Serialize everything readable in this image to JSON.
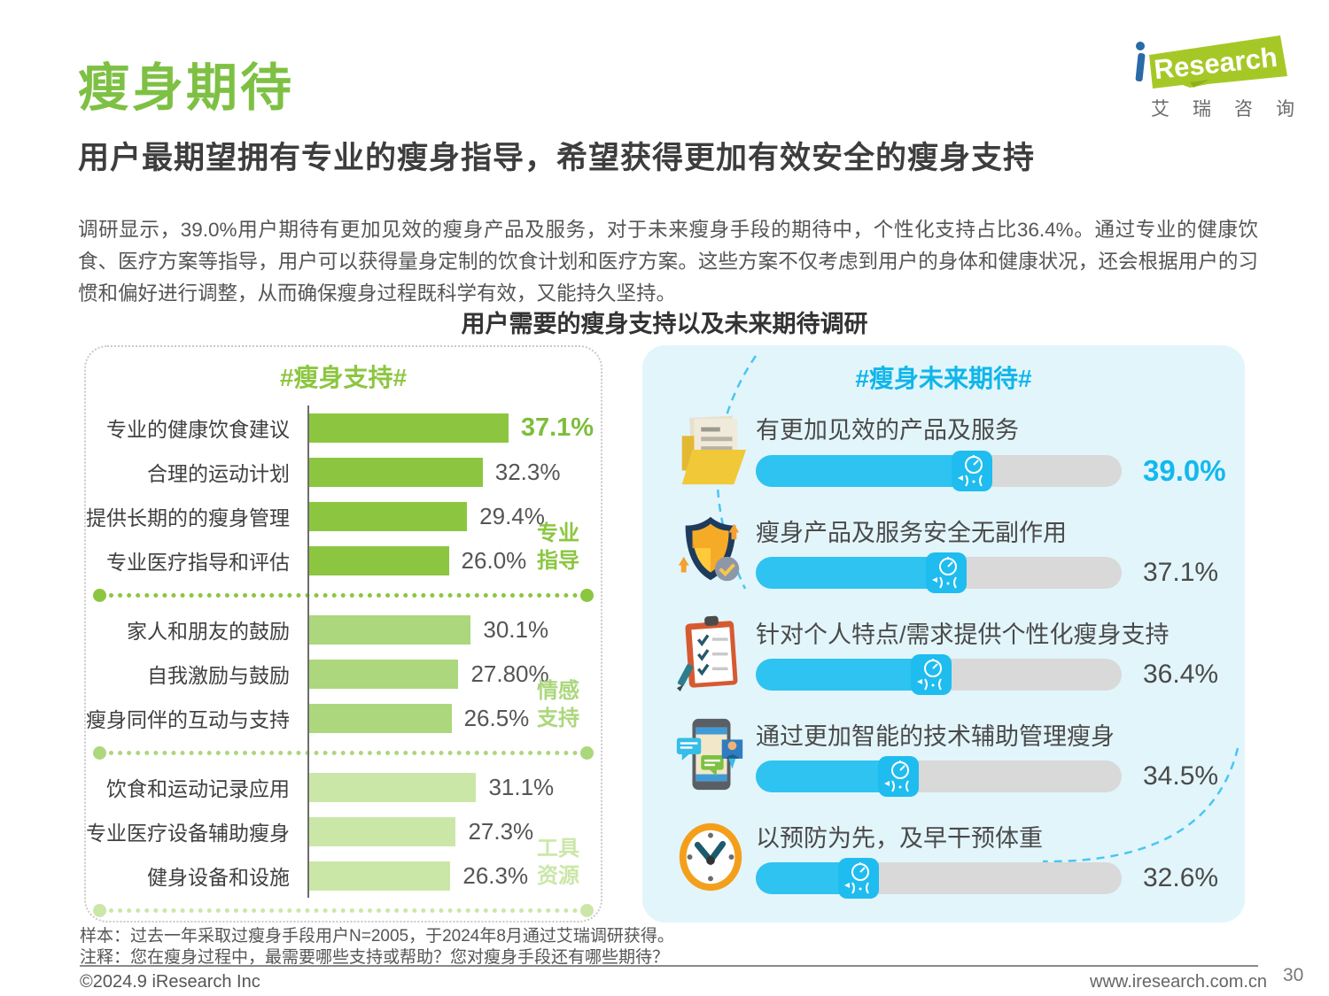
{
  "page": {
    "title": "瘦身期待",
    "subtitle": "用户最期望拥有专业的瘦身指导，希望获得更加有效安全的瘦身支持",
    "paragraph": "调研显示，39.0%用户期待有更加见效的瘦身产品及服务，对于未来瘦身手段的期待中，个性化支持占比36.4%。通过专业的健康饮食、医疗方案等指导，用户可以获得量身定制的饮食计划和医疗方案。这些方案不仅考虑到用户的身体和健康状况，还会根据用户的习惯和偏好进行调整，从而确保瘦身过程既科学有效，又能持久坚持。",
    "chart_title": "用户需要的瘦身支持以及未来期待调研",
    "page_number": "30"
  },
  "logo": {
    "i": "i",
    "name": "Research",
    "cn": "艾瑞咨询"
  },
  "left_chart": {
    "header": "#瘦身支持#",
    "groups": [
      {
        "label_line1": "专业",
        "label_line2": "指导",
        "rows": [
          {
            "label": "专业的健康饮食建议",
            "value": 37.1,
            "display": "37.1%"
          },
          {
            "label": "合理的运动计划",
            "value": 32.3,
            "display": "32.3%"
          },
          {
            "label": "提供长期的的瘦身管理",
            "value": 29.4,
            "display": "29.4%"
          },
          {
            "label": "专业医疗指导和评估",
            "value": 26.0,
            "display": "26.0%"
          }
        ]
      },
      {
        "label_line1": "情感",
        "label_line2": "支持",
        "rows": [
          {
            "label": "家人和朋友的鼓励",
            "value": 30.1,
            "display": "30.1%"
          },
          {
            "label": "自我激励与鼓励",
            "value": 27.8,
            "display": "27.80%"
          },
          {
            "label": "瘦身同伴的互动与支持",
            "value": 26.5,
            "display": "26.5%"
          }
        ]
      },
      {
        "label_line1": "工具",
        "label_line2": "资源",
        "rows": [
          {
            "label": "饮食和运动记录应用",
            "value": 31.1,
            "display": "31.1%"
          },
          {
            "label": "专业医疗设备辅助瘦身",
            "value": 27.3,
            "display": "27.3%"
          },
          {
            "label": "健身设备和设施",
            "value": 26.3,
            "display": "26.3%"
          }
        ]
      }
    ]
  },
  "right_chart": {
    "header": "#瘦身未来期待#",
    "items": [
      {
        "icon": "folder-documents-icon",
        "label": "有更加见效的产品及服务",
        "value": 39.0,
        "display": "39.0%",
        "fill_pct": 59
      },
      {
        "icon": "shield-check-icon",
        "label": "瘦身产品及服务安全无副作用",
        "value": 37.1,
        "display": "37.1%",
        "fill_pct": 52
      },
      {
        "icon": "checklist-clipboard-icon",
        "label": "针对个人特点/需求提供个性化瘦身支持",
        "value": 36.4,
        "display": "36.4%",
        "fill_pct": 48
      },
      {
        "icon": "smartphone-chat-icon",
        "label": "通过更加智能的技术辅助管理瘦身",
        "value": 34.5,
        "display": "34.5%",
        "fill_pct": 39
      },
      {
        "icon": "clock-icon",
        "label": "以预防为先，及早干预体重",
        "value": 32.6,
        "display": "32.6%",
        "fill_pct": 28
      }
    ]
  },
  "footer": {
    "sample": "样本：过去一年采取过瘦身手段用户N=2005，于2024年8月通过艾瑞调研获得。",
    "note": "注释：您在瘦身过程中，最需要哪些支持或帮助？您对瘦身手段还有哪些期待？",
    "copyright": "©2024.9 iResearch Inc",
    "website": "www.iresearch.com.cn"
  },
  "colors": {
    "brand_green": "#7EC043",
    "bar_green_dark": "#8CC640",
    "bar_green_mid": "#ACD77D",
    "bar_green_light": "#CBE7A8",
    "accent_cyan": "#14B8EC",
    "fill_cyan": "#2EC3F0",
    "panel_blue_bg": "#E2F5FB",
    "track_gray": "#D9D9D9"
  },
  "chart_data": [
    {
      "type": "bar",
      "orientation": "horizontal",
      "title": "#瘦身支持#",
      "categories": [
        "专业的健康饮食建议",
        "合理的运动计划",
        "提供长期的的瘦身管理",
        "专业医疗指导和评估",
        "家人和朋友的鼓励",
        "自我激励与鼓励",
        "瘦身同伴的互动与支持",
        "饮食和运动记录应用",
        "专业医疗设备辅助瘦身",
        "健身设备和设施"
      ],
      "values": [
        37.1,
        32.3,
        29.4,
        26.0,
        30.1,
        27.8,
        26.5,
        31.1,
        27.3,
        26.3
      ],
      "value_labels": [
        "37.1%",
        "32.3%",
        "29.4%",
        "26.0%",
        "30.1%",
        "27.80%",
        "26.5%",
        "31.1%",
        "27.3%",
        "26.3%"
      ],
      "group_annotations": [
        {
          "name": "专业指导",
          "rows": [
            0,
            1,
            2,
            3
          ]
        },
        {
          "name": "情感支持",
          "rows": [
            4,
            5,
            6
          ]
        },
        {
          "name": "工具资源",
          "rows": [
            7,
            8,
            9
          ]
        }
      ],
      "xlim": [
        0,
        40
      ],
      "grid": false,
      "legend": false
    },
    {
      "type": "bar",
      "orientation": "horizontal",
      "title": "#瘦身未来期待#",
      "categories": [
        "有更加见效的产品及服务",
        "瘦身产品及服务安全无副作用",
        "针对个人特点/需求提供个性化瘦身支持",
        "通过更加智能的技术辅助管理瘦身",
        "以预防为先，及早干预体重"
      ],
      "values": [
        39.0,
        37.1,
        36.4,
        34.5,
        32.6
      ],
      "value_labels": [
        "39.0%",
        "37.1%",
        "36.4%",
        "34.5%",
        "32.6%"
      ],
      "style": "progress-pill",
      "grid": false,
      "legend": false
    }
  ]
}
